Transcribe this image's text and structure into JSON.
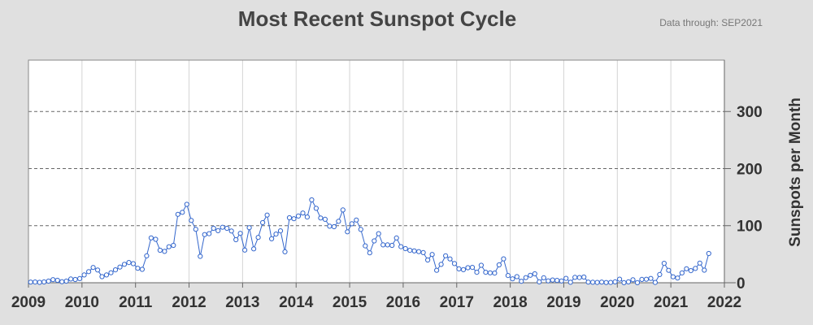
{
  "chart_data": {
    "type": "line",
    "title": "Most Recent Sunspot Cycle",
    "subtitle": "Data through: SEP2021",
    "ylabel": "Sunspots per Month",
    "xlabel": "",
    "xlim": [
      2009,
      2022
    ],
    "ylim": [
      0,
      390
    ],
    "x_ticks": [
      "2009",
      "2010",
      "2011",
      "2012",
      "2013",
      "2014",
      "2015",
      "2016",
      "2017",
      "2018",
      "2019",
      "2020",
      "2021",
      "2022"
    ],
    "y_ticks": [
      0,
      100,
      200,
      300
    ],
    "grid": {
      "x": "solid-light",
      "y": "dashed"
    },
    "y_axis_position": "right",
    "series": [
      {
        "color": "#3366cc",
        "marker": "open-circle",
        "start": "2009-01",
        "frequency": "monthly",
        "values": [
          1.2,
          1.3,
          0.7,
          1.4,
          2.9,
          5.4,
          4.3,
          1.9,
          2.8,
          6.6,
          5.7,
          7.3,
          13.7,
          19.5,
          26.8,
          22.4,
          10.7,
          13.6,
          17.5,
          22.6,
          27.5,
          32.3,
          35.4,
          33.5,
          25.3,
          23.5,
          47.1,
          78.6,
          76.1,
          57.0,
          54.9,
          63.0,
          65.5,
          119.8,
          123.4,
          137.4,
          109.2,
          93.6,
          46.3,
          84.4,
          85.9,
          95.3,
          91.2,
          97.2,
          95.4,
          90.7,
          75.5,
          86.5,
          57.2,
          96.5,
          59.3,
          79.4,
          105.3,
          118.5,
          77.0,
          85.2,
          90.9,
          54.3,
          113.8,
          112.1,
          116.9,
          122.1,
          115.2,
          145.2,
          130.4,
          113.5,
          111.2,
          99.0,
          98.2,
          107.6,
          127.6,
          89.2,
          103.4,
          109.9,
          93.4,
          64.6,
          52.4,
          73.3,
          86.0,
          66.3,
          66.3,
          65.5,
          78.4,
          63.2,
          59.8,
          56.8,
          55.8,
          54.5,
          52.8,
          39.8,
          49.5,
          21.8,
          32.1,
          47.3,
          41.7,
          33.6,
          24.3,
          22.9,
          26.4,
          26.9,
          18.3,
          30.6,
          18.4,
          17.4,
          17.0,
          31.3,
          41.8,
          12.6,
          6.8,
          10.7,
          2.5,
          8.9,
          13.1,
          15.6,
          1.6,
          8.7,
          3.3,
          4.9,
          4.1,
          3.1,
          7.7,
          0.8,
          9.4,
          9.1,
          9.9,
          1.2,
          0.9,
          0.5,
          1.1,
          0.4,
          0.5,
          1.6,
          6.2,
          0.2,
          1.5,
          5.2,
          0.2,
          5.8,
          6.1,
          7.5,
          0.6,
          14.4,
          34.0,
          21.8,
          10.4,
          8.2,
          17.2,
          24.5,
          21.2,
          25.0,
          34.4,
          22.0,
          51.3
        ]
      }
    ]
  }
}
